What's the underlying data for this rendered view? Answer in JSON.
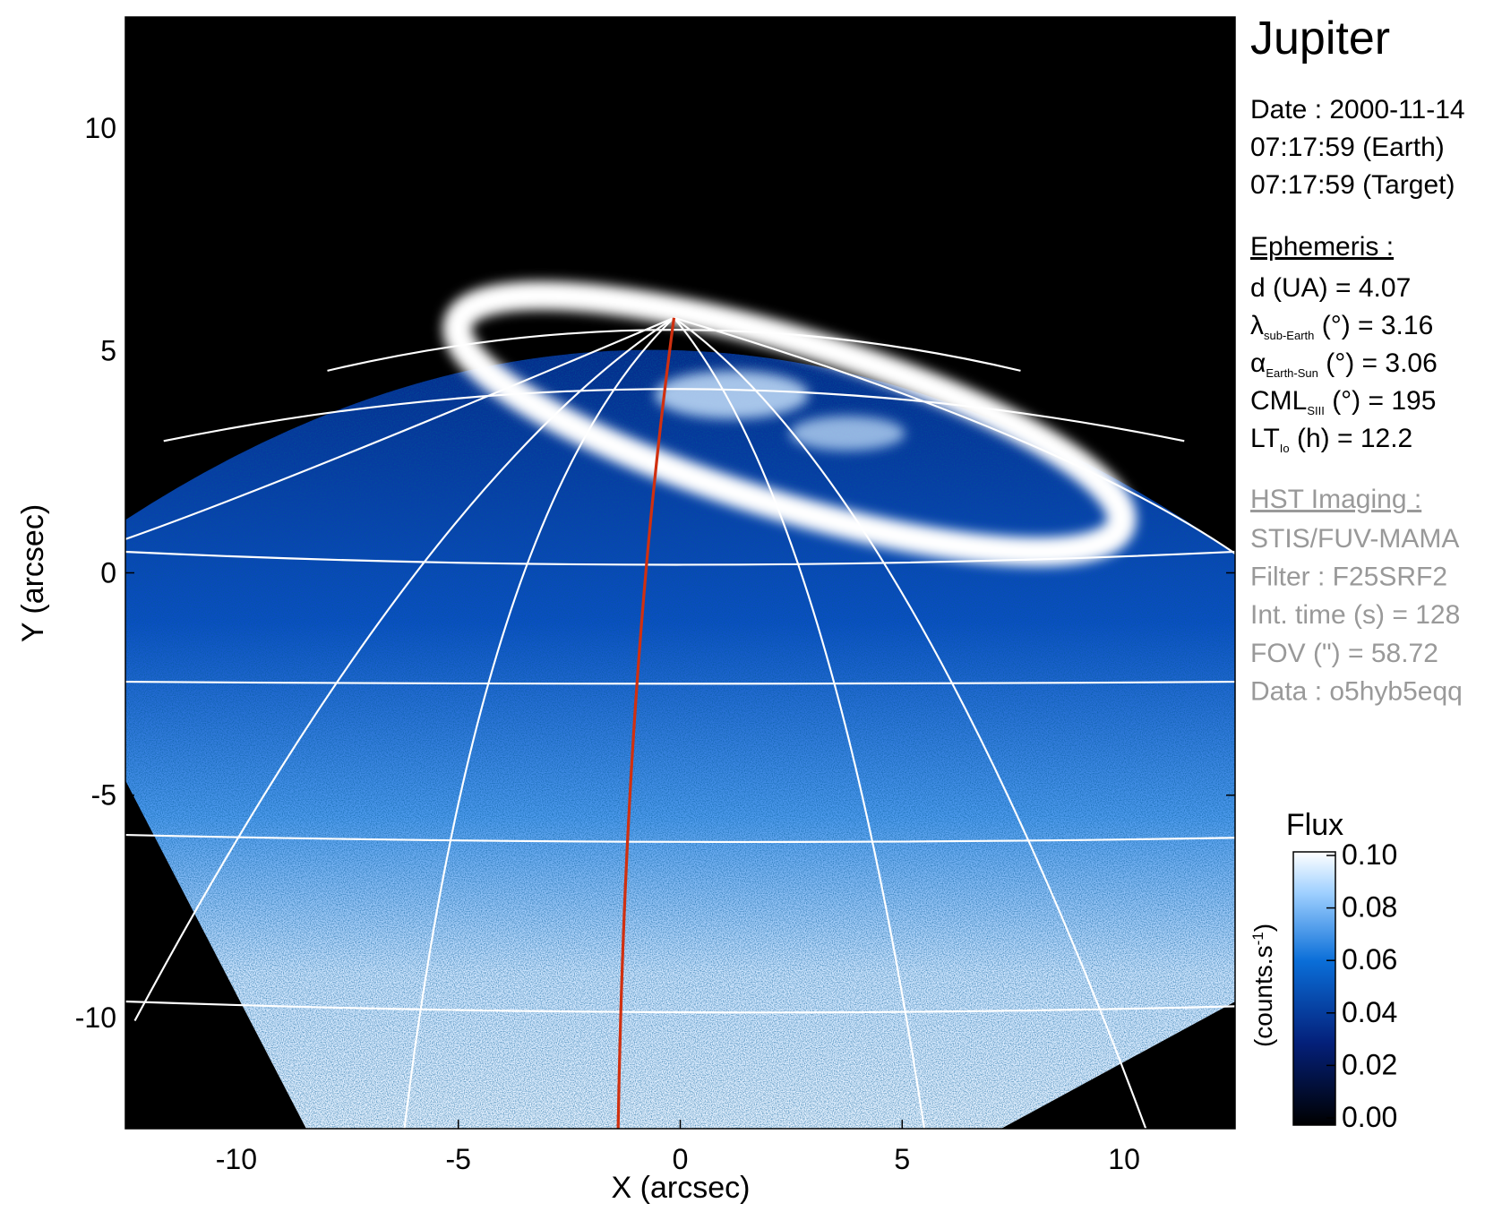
{
  "chart_data": {
    "type": "image",
    "xlabel": "X (arcsec)",
    "ylabel": "Y (arcsec)",
    "xlim": [
      -12.5,
      12.5
    ],
    "ylim": [
      -12.5,
      12.5
    ],
    "xticks": [
      -10,
      -5,
      0,
      5,
      10
    ],
    "yticks": [
      -10,
      -5,
      0,
      5,
      10
    ],
    "colorbar": {
      "title": "Flux",
      "label": {
        "text": "(counts.s",
        "sup": "-1",
        "end": ")"
      },
      "lim": [
        0,
        0.1
      ],
      "ticks": [
        {
          "value": 0,
          "label": "0.00"
        },
        {
          "value": 0.02,
          "label": "0.02"
        },
        {
          "value": 0.04,
          "label": "0.04"
        },
        {
          "value": 0.06,
          "label": "0.06"
        },
        {
          "value": 0.08,
          "label": "0.08"
        },
        {
          "value": 0.1,
          "label": "0.10"
        }
      ]
    }
  },
  "info": {
    "title": "Jupiter",
    "date": [
      "Date : 2000-11-14",
      "07:17:59 (Earth)",
      "07:17:59 (Target)"
    ],
    "ephemeris": {
      "heading": "Ephemeris :",
      "rows": [
        {
          "text": "d (UA)    = 4.07"
        },
        {
          "text": "λ",
          "sub": "sub-Earth",
          "rest": " (°) = 3.16"
        },
        {
          "text": "α",
          "sub": "Earth-Sun",
          "rest": " (°) = 3.06"
        },
        {
          "text": "CML",
          "sub": "SIII",
          "rest": " (°) = 195"
        },
        {
          "text": "LT",
          "sub": "Io",
          "rest": " (h) = 12.2"
        }
      ]
    },
    "imaging": {
      "heading": "HST Imaging :",
      "rows": [
        "STIS/FUV-MAMA",
        "Filter : F25SRF2",
        "Int. time (s) = 128",
        "FOV (\") = 58.72",
        "Data : o5hyb5eqq"
      ]
    }
  }
}
